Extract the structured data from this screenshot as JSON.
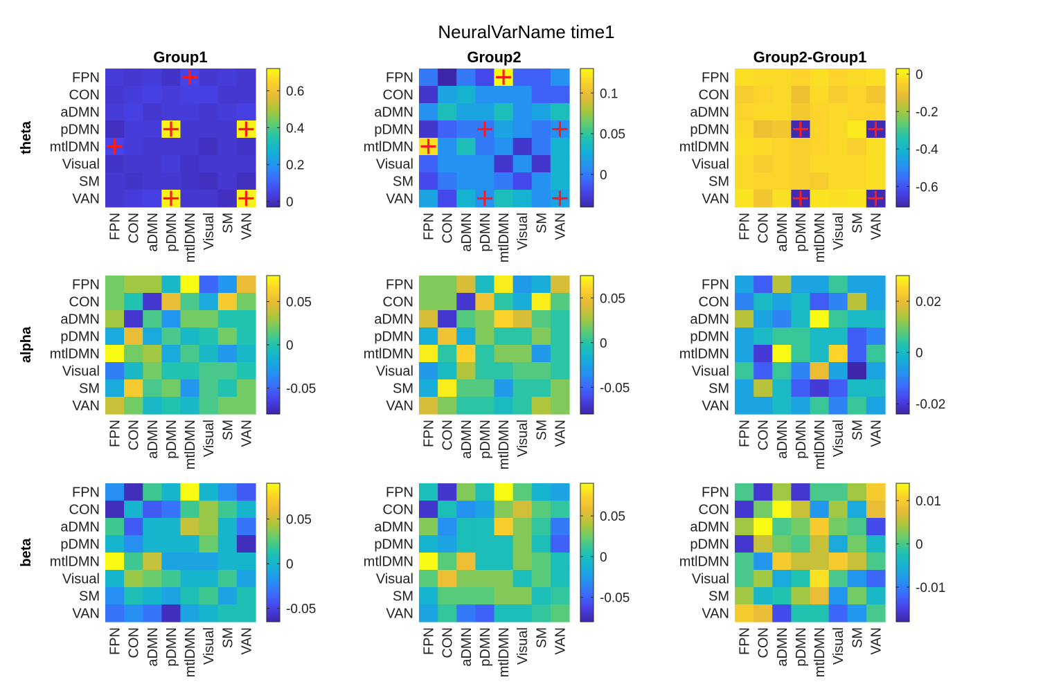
{
  "figure": {
    "title": "NeuralVarName time1"
  },
  "chart_data": {
    "type": "heatmap",
    "title": "NeuralVarName time1",
    "columns": [
      "Group1",
      "Group2",
      "Group2-Group1"
    ],
    "rows": [
      "theta",
      "alpha",
      "beta"
    ],
    "labels": [
      "FPN",
      "CON",
      "aDMN",
      "pDMN",
      "mtlDMN",
      "Visual",
      "SM",
      "VAN"
    ],
    "colormap": "parula",
    "marker_color": "#ff1a1a",
    "panels": [
      {
        "band": "theta",
        "group": "Group1",
        "clim": [
          -0.03,
          0.72
        ],
        "ticks": [
          0,
          0.2,
          0.4,
          0.6
        ],
        "tick_labels": [
          "0",
          "0.2",
          "0.4",
          "0.6"
        ],
        "values": [
          [
            0.03,
            0.02,
            0.03,
            0.01,
            0.05,
            0.02,
            0.03,
            0.02
          ],
          [
            0.02,
            0.03,
            0.04,
            0.03,
            0.04,
            0.04,
            0.02,
            0.02
          ],
          [
            0.03,
            0.04,
            0.02,
            0.03,
            0.03,
            0.02,
            0.03,
            0.04
          ],
          [
            0.0,
            0.03,
            0.03,
            0.7,
            0.02,
            0.02,
            0.02,
            0.7
          ],
          [
            0.05,
            0.03,
            0.02,
            0.02,
            0.02,
            0.0,
            0.02,
            0.01
          ],
          [
            0.01,
            0.02,
            0.02,
            0.03,
            0.01,
            0.02,
            0.02,
            0.02
          ],
          [
            0.02,
            0.01,
            0.02,
            0.02,
            0.01,
            0.0,
            0.02,
            0.0
          ],
          [
            0.02,
            0.03,
            0.04,
            0.7,
            0.02,
            0.02,
            0.0,
            0.7
          ]
        ],
        "significant": [
          [
            0,
            4
          ],
          [
            3,
            3
          ],
          [
            3,
            7
          ],
          [
            4,
            0
          ],
          [
            7,
            3
          ],
          [
            7,
            7
          ]
        ]
      },
      {
        "band": "theta",
        "group": "Group2",
        "clim": [
          -0.04,
          0.13
        ],
        "ticks": [
          0,
          0.05,
          0.1
        ],
        "tick_labels": [
          "0",
          "0.05",
          "0.1"
        ],
        "values": [
          [
            0.0,
            -0.04,
            0.0,
            -0.02,
            0.13,
            -0.01,
            -0.01,
            0.01
          ],
          [
            -0.03,
            0.02,
            0.03,
            0.01,
            0.01,
            0.01,
            -0.01,
            -0.01
          ],
          [
            0.01,
            0.04,
            0.02,
            0.02,
            0.04,
            0.01,
            0.02,
            0.04
          ],
          [
            -0.03,
            -0.01,
            0.0,
            0.0,
            0.02,
            0.01,
            0.0,
            0.01
          ],
          [
            0.12,
            0.01,
            0.04,
            0.0,
            0.01,
            -0.03,
            0.0,
            0.03
          ],
          [
            -0.01,
            0.01,
            0.01,
            0.01,
            -0.03,
            0.01,
            -0.03,
            0.03
          ],
          [
            -0.02,
            0.0,
            0.01,
            0.01,
            0.0,
            -0.02,
            0.01,
            0.03
          ],
          [
            0.02,
            -0.02,
            0.03,
            0.01,
            0.04,
            0.03,
            0.01,
            0.02
          ]
        ],
        "significant": [
          [
            0,
            4
          ],
          [
            3,
            3
          ],
          [
            3,
            7
          ],
          [
            4,
            0
          ],
          [
            7,
            3
          ],
          [
            7,
            7
          ]
        ]
      },
      {
        "band": "theta",
        "group": "Group2-Group1",
        "clim": [
          -0.71,
          0.03
        ],
        "ticks": [
          0,
          -0.2,
          -0.4,
          -0.6
        ],
        "tick_labels": [
          "0",
          "-0.2",
          "-0.4",
          "-0.6"
        ],
        "values": [
          [
            -0.02,
            -0.03,
            -0.03,
            -0.04,
            -0.02,
            -0.04,
            -0.03,
            -0.02
          ],
          [
            -0.06,
            -0.04,
            -0.03,
            -0.1,
            -0.03,
            -0.06,
            -0.04,
            -0.08
          ],
          [
            -0.04,
            -0.03,
            -0.03,
            -0.07,
            -0.04,
            -0.03,
            -0.04,
            -0.04
          ],
          [
            -0.03,
            -0.1,
            -0.08,
            -0.7,
            -0.04,
            -0.03,
            0.0,
            -0.7
          ],
          [
            -0.02,
            -0.03,
            -0.04,
            -0.05,
            -0.04,
            -0.03,
            -0.05,
            -0.02
          ],
          [
            -0.03,
            -0.06,
            -0.04,
            -0.05,
            -0.03,
            -0.03,
            -0.03,
            -0.02
          ],
          [
            -0.03,
            -0.04,
            -0.04,
            -0.05,
            -0.06,
            -0.03,
            -0.03,
            -0.02
          ],
          [
            -0.01,
            -0.08,
            -0.02,
            -0.7,
            -0.01,
            -0.02,
            -0.01,
            -0.7
          ]
        ],
        "significant": [
          [
            3,
            3
          ],
          [
            3,
            7
          ],
          [
            7,
            3
          ],
          [
            7,
            7
          ]
        ]
      },
      {
        "band": "alpha",
        "group": "Group1",
        "clim": [
          -0.08,
          0.08
        ],
        "ticks": [
          0.05,
          0,
          -0.05
        ],
        "tick_labels": [
          "0.05",
          "0",
          "-0.05"
        ],
        "values": [
          [
            0.02,
            0.03,
            0.03,
            -0.01,
            0.08,
            -0.05,
            -0.03,
            0.05
          ],
          [
            0.02,
            0.0,
            -0.07,
            0.05,
            0.01,
            -0.02,
            0.06,
            0.02
          ],
          [
            0.03,
            -0.07,
            0.01,
            -0.03,
            0.02,
            0.02,
            0.0,
            0.0
          ],
          [
            -0.02,
            0.05,
            -0.02,
            0.01,
            -0.01,
            0.0,
            0.02,
            0.0
          ],
          [
            0.08,
            0.02,
            0.03,
            -0.02,
            0.01,
            -0.01,
            -0.03,
            -0.01
          ],
          [
            -0.04,
            -0.01,
            0.02,
            0.0,
            0.0,
            0.01,
            0.01,
            0.0
          ],
          [
            -0.02,
            0.06,
            0.01,
            0.02,
            -0.03,
            0.01,
            0.0,
            0.02
          ],
          [
            0.04,
            0.02,
            -0.01,
            0.0,
            -0.01,
            0.01,
            0.02,
            0.02
          ]
        ],
        "significant": []
      },
      {
        "band": "alpha",
        "group": "Group2",
        "clim": [
          -0.08,
          0.075
        ],
        "ticks": [
          0.05,
          0,
          -0.05
        ],
        "tick_labels": [
          "0.05",
          "0",
          "-0.05"
        ],
        "values": [
          [
            0.02,
            0.02,
            0.04,
            -0.01,
            0.07,
            -0.03,
            -0.02,
            0.04
          ],
          [
            0.02,
            0.02,
            -0.07,
            0.05,
            0.0,
            -0.02,
            0.07,
            0.01
          ],
          [
            0.04,
            -0.07,
            0.01,
            0.02,
            0.06,
            0.04,
            0.01,
            0.0
          ],
          [
            -0.02,
            0.05,
            -0.02,
            0.02,
            0.0,
            0.0,
            0.02,
            0.0
          ],
          [
            0.07,
            0.0,
            0.06,
            0.0,
            0.02,
            0.02,
            -0.03,
            0.0
          ],
          [
            -0.03,
            -0.01,
            0.03,
            0.0,
            0.0,
            0.01,
            0.01,
            0.0
          ],
          [
            -0.02,
            0.07,
            0.01,
            0.01,
            -0.03,
            0.0,
            0.0,
            0.02
          ],
          [
            0.04,
            0.02,
            0.0,
            0.0,
            -0.01,
            0.0,
            0.03,
            0.02
          ]
        ],
        "significant": []
      },
      {
        "band": "alpha",
        "group": "Group2-Group1",
        "clim": [
          -0.024,
          0.03
        ],
        "ticks": [
          0.02,
          0,
          -0.02
        ],
        "tick_labels": [
          "0.02",
          "0",
          "-0.02"
        ],
        "values": [
          [
            -0.005,
            -0.015,
            0.015,
            -0.005,
            -0.005,
            0.005,
            -0.005,
            -0.005
          ],
          [
            -0.01,
            0.0,
            -0.005,
            0.0,
            -0.015,
            -0.01,
            0.015,
            -0.005
          ],
          [
            0.015,
            -0.005,
            -0.01,
            0.0,
            0.03,
            0.005,
            0.0,
            0.0
          ],
          [
            -0.005,
            0.0,
            0.005,
            0.005,
            0.0,
            0.0,
            -0.015,
            -0.01
          ],
          [
            -0.005,
            -0.02,
            0.03,
            0.005,
            0.0,
            0.025,
            -0.015,
            0.005
          ],
          [
            0.005,
            -0.015,
            0.005,
            -0.01,
            0.02,
            -0.005,
            -0.025,
            -0.005
          ],
          [
            -0.005,
            0.015,
            0.0,
            -0.015,
            -0.02,
            -0.015,
            0.0,
            0.0
          ],
          [
            -0.005,
            -0.005,
            0.0,
            -0.005,
            0.005,
            -0.01,
            0.005,
            -0.005
          ]
        ],
        "significant": []
      },
      {
        "band": "beta",
        "group": "Group1",
        "clim": [
          -0.065,
          0.09
        ],
        "ticks": [
          0.05,
          0,
          -0.05
        ],
        "tick_labels": [
          "0.05",
          "0",
          "-0.05"
        ],
        "values": [
          [
            -0.02,
            -0.06,
            0.02,
            0.0,
            0.09,
            0.0,
            -0.02,
            -0.04
          ],
          [
            -0.06,
            0.0,
            -0.04,
            -0.03,
            0.02,
            0.04,
            0.02,
            0.0
          ],
          [
            0.02,
            -0.04,
            0.0,
            0.0,
            0.05,
            0.04,
            0.0,
            -0.03
          ],
          [
            0.0,
            -0.02,
            0.0,
            0.0,
            0.0,
            0.03,
            0.0,
            -0.06
          ],
          [
            0.09,
            0.02,
            0.05,
            -0.01,
            -0.01,
            -0.01,
            0.0,
            0.0
          ],
          [
            0.0,
            0.04,
            0.03,
            0.02,
            0.0,
            0.0,
            0.02,
            -0.01
          ],
          [
            -0.02,
            0.01,
            0.0,
            -0.01,
            0.01,
            0.02,
            -0.01,
            0.01
          ],
          [
            -0.03,
            -0.02,
            -0.03,
            -0.06,
            -0.01,
            0.0,
            0.01,
            0.01
          ]
        ],
        "significant": []
      },
      {
        "band": "beta",
        "group": "Group2",
        "clim": [
          -0.08,
          0.09
        ],
        "ticks": [
          0.05,
          0,
          -0.05
        ],
        "tick_labels": [
          "0.05",
          "0",
          "-0.05"
        ],
        "values": [
          [
            0.0,
            -0.07,
            0.03,
            0.0,
            0.09,
            0.02,
            -0.01,
            -0.02
          ],
          [
            -0.07,
            0.0,
            -0.03,
            -0.02,
            0.03,
            0.05,
            0.02,
            0.01
          ],
          [
            0.03,
            -0.03,
            0.0,
            0.0,
            0.07,
            0.03,
            0.01,
            -0.04
          ],
          [
            -0.01,
            -0.02,
            0.0,
            0.0,
            0.0,
            0.03,
            0.0,
            -0.05
          ],
          [
            0.09,
            0.02,
            0.06,
            0.0,
            0.0,
            0.03,
            0.02,
            0.0
          ],
          [
            0.02,
            0.06,
            0.03,
            0.03,
            0.03,
            0.0,
            0.02,
            0.0
          ],
          [
            -0.01,
            0.02,
            0.02,
            0.02,
            0.03,
            0.03,
            0.0,
            0.01
          ],
          [
            -0.02,
            0.01,
            -0.04,
            -0.05,
            0.0,
            0.0,
            0.01,
            0.02
          ]
        ],
        "significant": []
      },
      {
        "band": "beta",
        "group": "Group2-Group1",
        "clim": [
          -0.018,
          0.014
        ],
        "ticks": [
          0.01,
          0,
          -0.01
        ],
        "tick_labels": [
          "0.01",
          "0",
          "-0.01"
        ],
        "values": [
          [
            0.0,
            -0.016,
            0.004,
            -0.016,
            0.0,
            0.0,
            0.004,
            0.01
          ],
          [
            -0.016,
            0.002,
            0.014,
            0.006,
            -0.008,
            0.004,
            -0.006,
            0.008
          ],
          [
            0.004,
            0.014,
            0.0,
            0.002,
            0.01,
            0.002,
            0.0,
            -0.014
          ],
          [
            -0.016,
            0.006,
            0.002,
            0.0,
            0.006,
            -0.006,
            0.002,
            -0.004
          ],
          [
            0.0,
            -0.008,
            0.01,
            0.006,
            0.006,
            0.01,
            0.006,
            0.0
          ],
          [
            0.0,
            0.004,
            -0.006,
            -0.002,
            0.012,
            0.0,
            -0.008,
            -0.012
          ],
          [
            0.004,
            -0.004,
            -0.002,
            0.004,
            0.008,
            -0.008,
            0.002,
            -0.004
          ],
          [
            0.01,
            0.008,
            -0.014,
            -0.002,
            -0.002,
            -0.012,
            -0.008,
            0.0
          ]
        ],
        "significant": []
      }
    ]
  }
}
